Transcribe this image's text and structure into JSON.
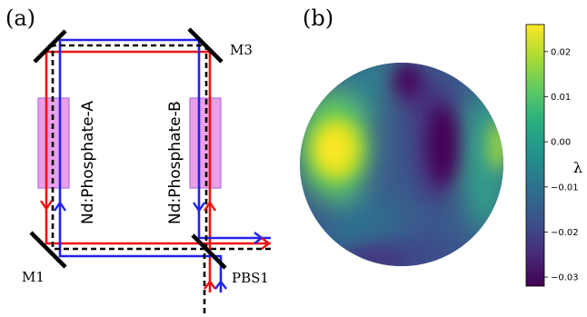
{
  "panels": {
    "a": {
      "label": "(a)"
    },
    "b": {
      "label": "(b)"
    }
  },
  "optics": {
    "m1": "M1",
    "m3": "M3",
    "pbs1": "PBS1",
    "crystal_a": "Nd:Phosphate-A",
    "crystal_b": "Nd:Phosphate-B"
  },
  "colors": {
    "beam_red": "#ee1111",
    "beam_blue": "#2222ee",
    "beam_black_dashed": "#000000",
    "crystal_fill": "#e68ee6",
    "crystal_edge": "#b070e0"
  },
  "colorbar": {
    "symbol": "λ",
    "colormap": "viridis",
    "min": -0.032,
    "max": 0.026,
    "ticks": [
      "0.02",
      "0.01",
      "0.00",
      "−0.01",
      "−0.02",
      "−0.03"
    ],
    "tick_values": [
      0.02,
      0.01,
      0.0,
      -0.01,
      -0.02,
      -0.03
    ]
  }
}
